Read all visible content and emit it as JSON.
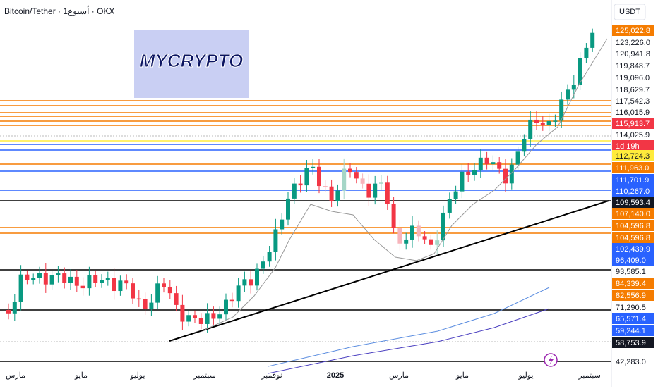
{
  "header": {
    "title": "Bitcoin/Tether · 1أسبوع · OKX",
    "currency": "USDT"
  },
  "price_labels": [
    {
      "text": "125,022.8",
      "color": "#f57c00"
    },
    {
      "text": "123,226.0",
      "color": "#ffffff"
    },
    {
      "text": "120,941.8",
      "color": "#ffffff"
    },
    {
      "text": "119,848.7",
      "color": "#ffffff"
    },
    {
      "text": "119,096.0",
      "color": "#ffffff"
    },
    {
      "text": "118,629.7",
      "color": "#ffffff"
    },
    {
      "text": "117,542.3",
      "color": "#ffffff"
    },
    {
      "text": "116,015.9",
      "color": "#ffffff"
    },
    {
      "text": "115,913.7",
      "color": "#f23645"
    },
    {
      "text": "114,025.9",
      "color": "#ffffff"
    },
    {
      "text": "1d 19h",
      "color": "#f23645"
    },
    {
      "text": "112,724.3",
      "color": "#ffeb3b"
    },
    {
      "text": "111,963.0",
      "color": "#f57c00"
    },
    {
      "text": "111,701.9",
      "color": "#2962ff"
    },
    {
      "text": "110,267.0",
      "color": "#2962ff"
    },
    {
      "text": "109,593.4",
      "color": "#131722"
    },
    {
      "text": "107,140.0",
      "color": "#f57c00"
    },
    {
      "text": "104,596.8",
      "color": "#f57c00"
    },
    {
      "text": "104,596.8",
      "color": "#f57c00"
    },
    {
      "text": "102,439.9",
      "color": "#2962ff"
    },
    {
      "text": "96,409.0",
      "color": "#2962ff"
    },
    {
      "text": "93,585.1",
      "color": "#ffffff"
    },
    {
      "text": "84,339.4",
      "color": "#f57c00"
    },
    {
      "text": "82,556.9",
      "color": "#f57c00"
    },
    {
      "text": "71,290.5",
      "color": "#ffffff"
    },
    {
      "text": "65,571.4",
      "color": "#2962ff"
    },
    {
      "text": "59,244.1",
      "color": "#2962ff"
    },
    {
      "text": "58,753.9",
      "color": "#131722"
    },
    {
      "text": "42,283.0",
      "color": "#ffffff"
    }
  ],
  "time_labels": [
    "مارس",
    "مايو",
    "يوليو",
    "سبتمبر",
    "نوفمبر",
    "2025",
    "مارس",
    "مايو",
    "يوليو",
    "سبتمبر"
  ],
  "logo": "MYCRYPTO"
}
